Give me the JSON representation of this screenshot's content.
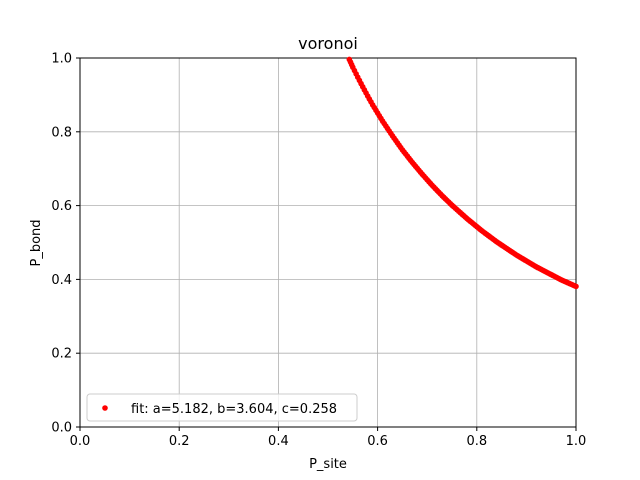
{
  "chart_data": {
    "type": "scatter",
    "title": "voronoi",
    "xlabel": "P_site",
    "ylabel": "P_bond",
    "xlim": [
      0.0,
      1.0
    ],
    "ylim": [
      0.0,
      1.0
    ],
    "xticks": [
      "0.0",
      "0.2",
      "0.4",
      "0.6",
      "0.8",
      "1.0"
    ],
    "yticks": [
      "0.0",
      "0.2",
      "0.4",
      "0.6",
      "0.8",
      "1.0"
    ],
    "grid": true,
    "legend_position": "lower-left",
    "series": [
      {
        "name": "fit: a=5.182, b=3.604, c=0.258",
        "color": "#ff0000",
        "marker": "dot",
        "x": [
          0.543,
          0.55,
          0.56,
          0.57,
          0.58,
          0.59,
          0.6,
          0.61,
          0.62,
          0.63,
          0.64,
          0.65,
          0.66,
          0.67,
          0.68,
          0.69,
          0.7,
          0.71,
          0.72,
          0.73,
          0.74,
          0.75,
          0.76,
          0.77,
          0.78,
          0.79,
          0.8,
          0.81,
          0.82,
          0.83,
          0.84,
          0.85,
          0.86,
          0.87,
          0.88,
          0.89,
          0.9,
          0.91,
          0.92,
          0.93,
          0.94,
          0.95,
          0.96,
          0.97,
          0.98,
          0.99,
          1.0
        ],
        "y": [
          0.996,
          0.975,
          0.948,
          0.922,
          0.897,
          0.873,
          0.851,
          0.829,
          0.809,
          0.789,
          0.77,
          0.751,
          0.734,
          0.717,
          0.701,
          0.685,
          0.67,
          0.655,
          0.641,
          0.627,
          0.614,
          0.601,
          0.589,
          0.577,
          0.565,
          0.554,
          0.543,
          0.532,
          0.522,
          0.512,
          0.502,
          0.493,
          0.484,
          0.475,
          0.466,
          0.458,
          0.45,
          0.442,
          0.434,
          0.427,
          0.42,
          0.413,
          0.406,
          0.399,
          0.393,
          0.387,
          0.381
        ]
      }
    ]
  }
}
